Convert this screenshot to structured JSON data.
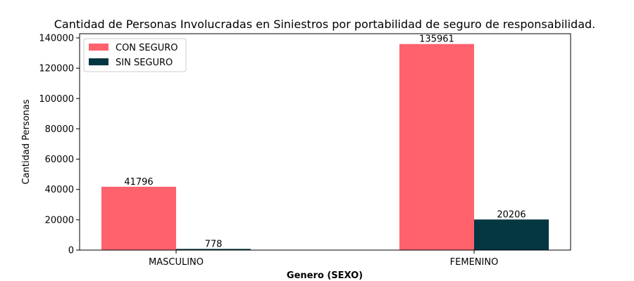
{
  "chart_data": {
    "type": "bar",
    "title": "Cantidad de Personas Involucradas en Siniestros por portabilidad de seguro de responsabilidad.",
    "xlabel": "Genero (SEXO)",
    "ylabel": "Cantidad Personas",
    "categories": [
      "MASCULINO",
      "FEMENINO"
    ],
    "series": [
      {
        "name": "CON SEGURO",
        "values": [
          41796,
          135961
        ],
        "color": "#ff616d"
      },
      {
        "name": "SIN SEGURO",
        "values": [
          778,
          20206
        ],
        "color": "#053742"
      }
    ],
    "ylim": [
      0,
      142759
    ],
    "yticks": [
      0,
      20000,
      40000,
      60000,
      80000,
      100000,
      120000,
      140000
    ],
    "grid": false,
    "legend_position": "top-left",
    "data_labels": true
  }
}
